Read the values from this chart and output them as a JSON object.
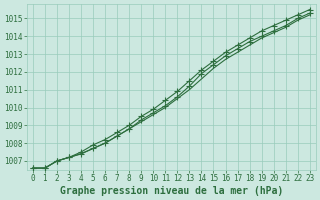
{
  "xlabel": "Graphe pression niveau de la mer (hPa)",
  "xlim": [
    -0.5,
    23.5
  ],
  "ylim": [
    1006.5,
    1015.8
  ],
  "yticks": [
    1007,
    1008,
    1009,
    1010,
    1011,
    1012,
    1013,
    1014,
    1015
  ],
  "xticks": [
    0,
    1,
    2,
    3,
    4,
    5,
    6,
    7,
    8,
    9,
    10,
    11,
    12,
    13,
    14,
    15,
    16,
    17,
    18,
    19,
    20,
    21,
    22,
    23
  ],
  "bg_color": "#cce8e0",
  "grid_color": "#99ccbb",
  "line_color": "#2d6e3e",
  "line1": [
    1006.6,
    1006.6,
    1007.0,
    1007.2,
    1007.5,
    1007.9,
    1008.2,
    1008.6,
    1009.0,
    1009.5,
    1009.9,
    1010.4,
    1010.9,
    1011.5,
    1012.1,
    1012.6,
    1013.1,
    1013.5,
    1013.9,
    1014.3,
    1014.6,
    1014.9,
    1015.2,
    1015.5
  ],
  "line2": [
    1006.6,
    1006.6,
    1007.0,
    1007.2,
    1007.4,
    1007.7,
    1008.0,
    1008.4,
    1008.8,
    1009.3,
    1009.7,
    1010.1,
    1010.6,
    1011.2,
    1011.9,
    1012.4,
    1012.9,
    1013.3,
    1013.7,
    1014.0,
    1014.3,
    1014.6,
    1015.0,
    1015.3
  ],
  "line3": [
    1006.6,
    1006.6,
    1007.0,
    1007.2,
    1007.4,
    1007.7,
    1008.0,
    1008.4,
    1008.8,
    1009.2,
    1009.6,
    1010.0,
    1010.5,
    1011.0,
    1011.6,
    1012.2,
    1012.7,
    1013.1,
    1013.5,
    1013.9,
    1014.2,
    1014.5,
    1014.9,
    1015.2
  ],
  "tick_fontsize": 5.5,
  "label_fontsize": 7,
  "label_fontweight": "bold"
}
